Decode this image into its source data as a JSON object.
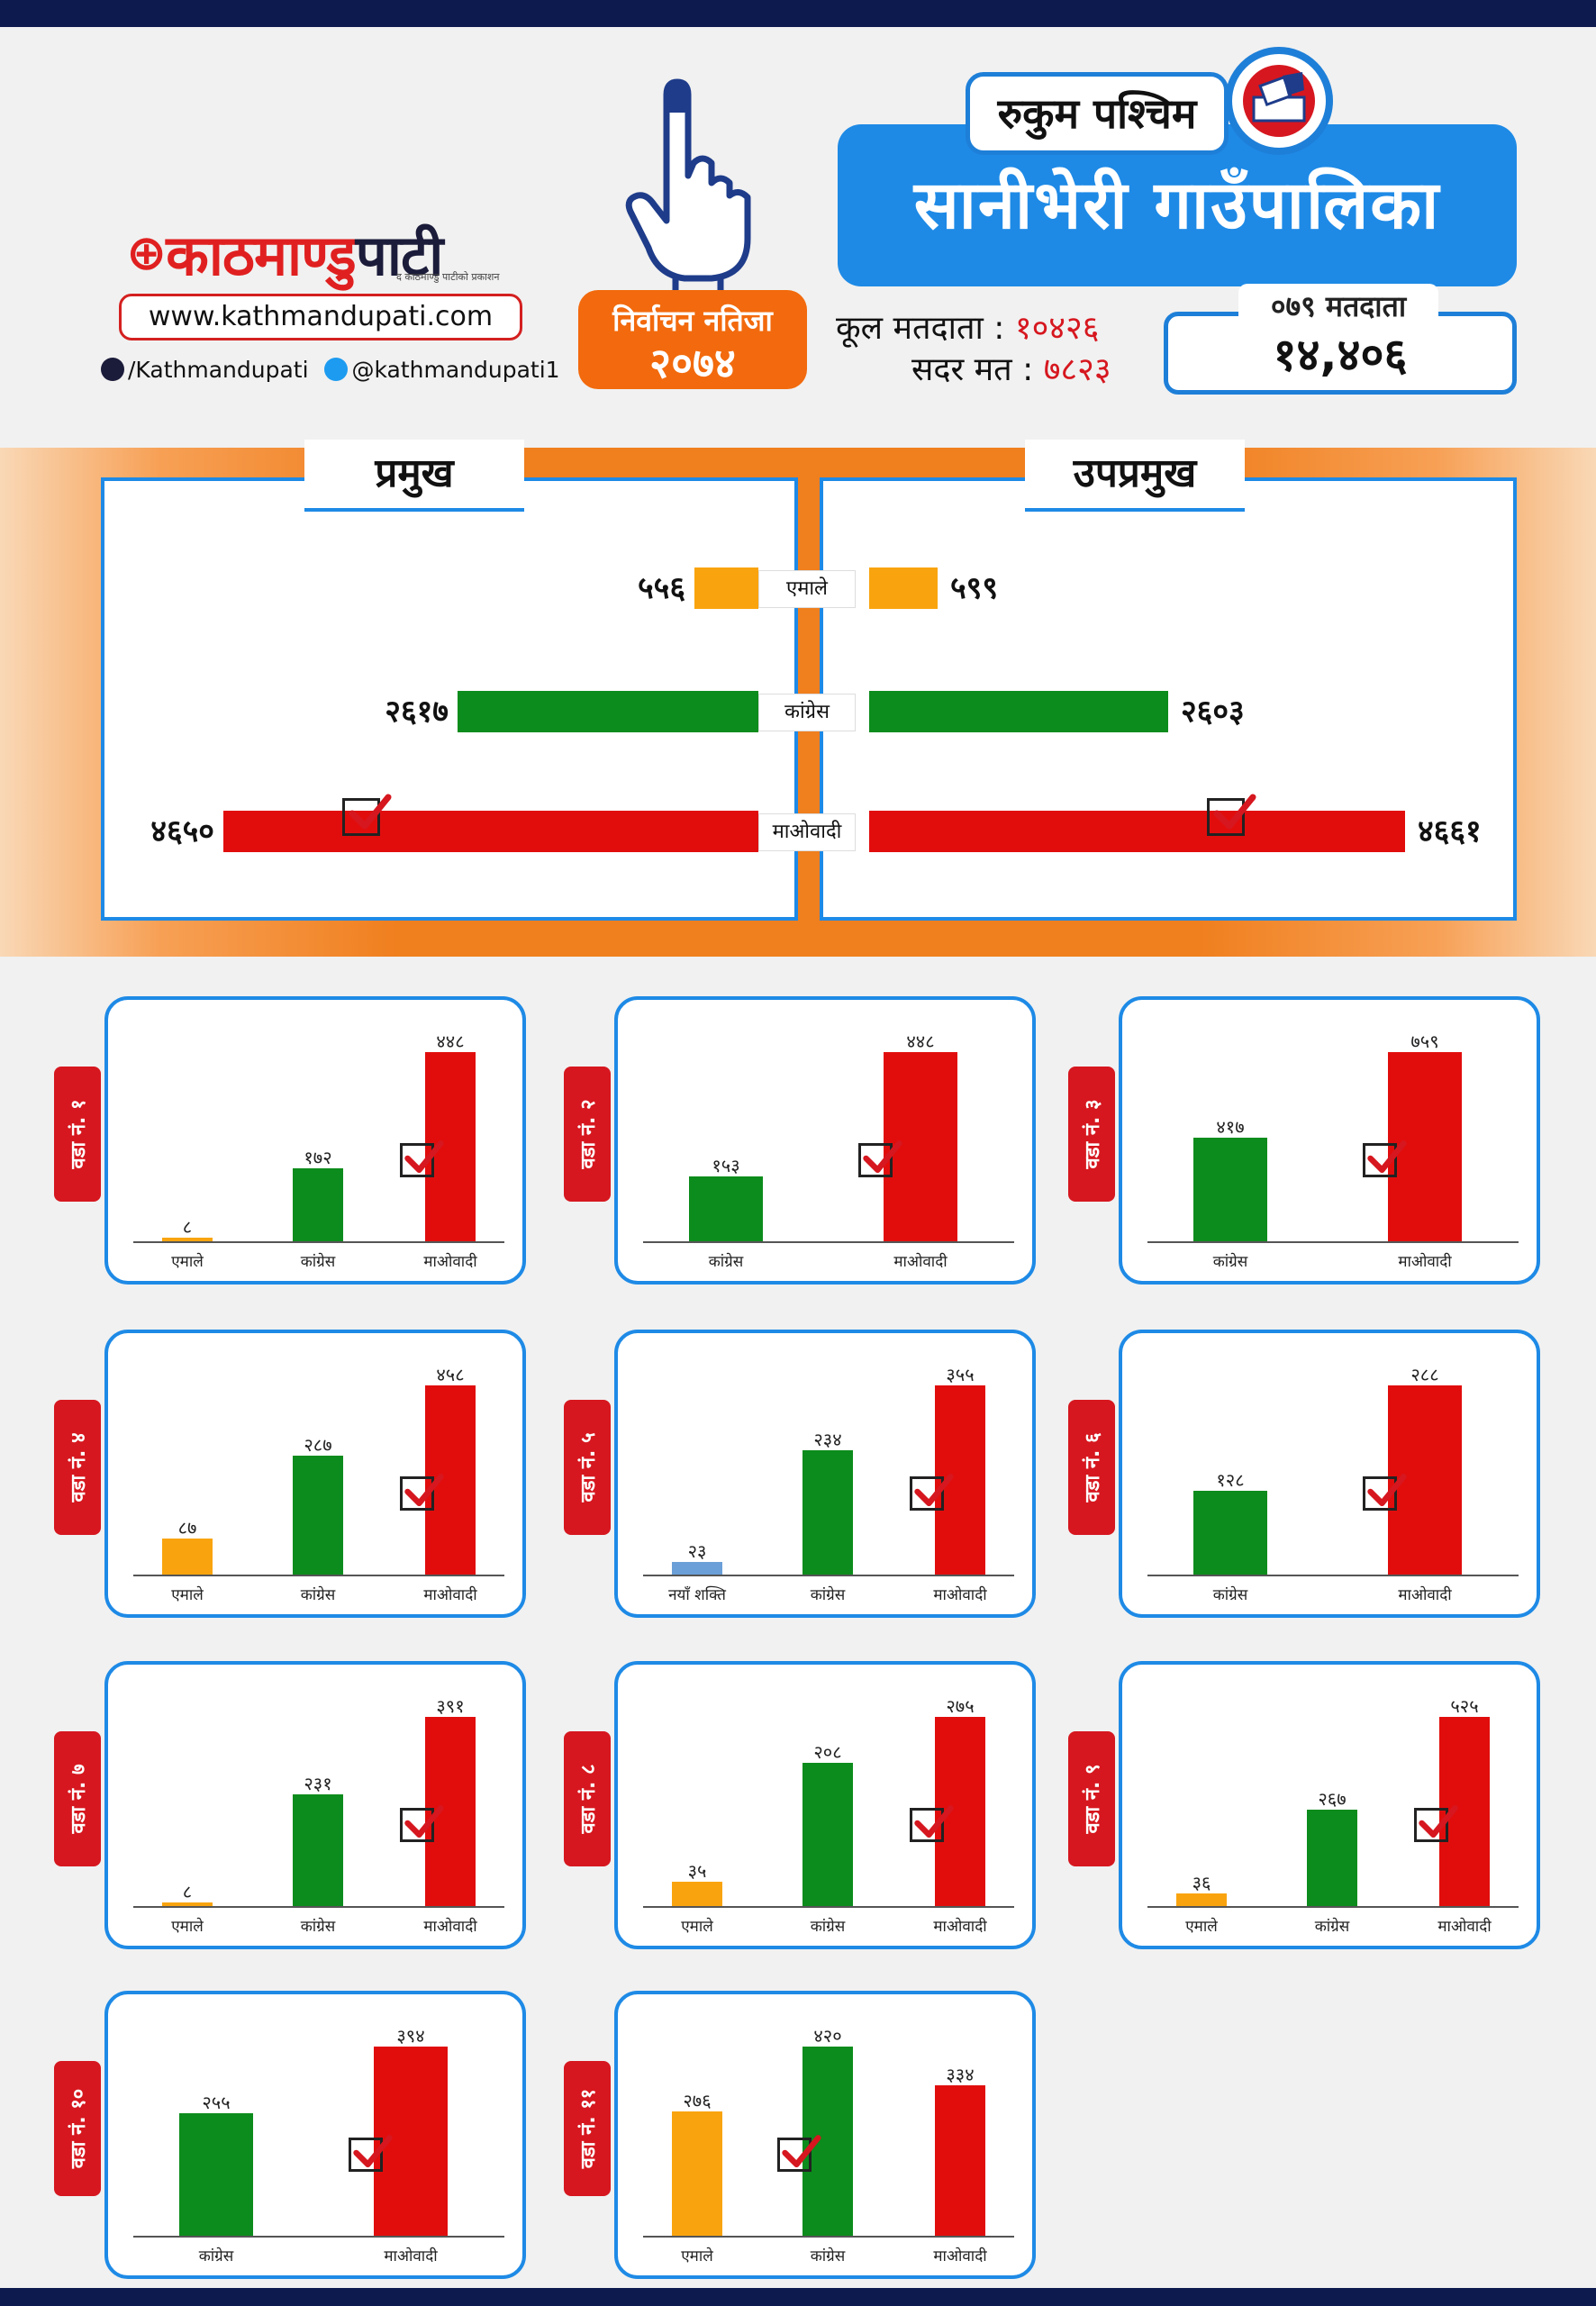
{
  "brand": {
    "logo_red": "काठमाण्डु",
    "logo_dark": "पाटी",
    "tagline": "द काठमाण्डु पाटीको प्रकाशन",
    "website": "www.kathmandupati.com",
    "facebook": "/Kathmandupati",
    "twitter": "@kathmandupati1"
  },
  "badge": {
    "line1": "निर्वाचन नतिजा",
    "line2": "२०७४"
  },
  "header": {
    "district": "रुकुम पश्चिम",
    "municipality": "सानीभेरी  गाउँपालिका"
  },
  "stats": {
    "total_voters_label": "कूल मतदाता :",
    "total_voters_value": "१०४२६",
    "valid_votes_label": "सदर मत :",
    "valid_votes_value": "७८२३",
    "voters_079_label": "०७९ मतदाता",
    "voters_079_value": "१४,४०६"
  },
  "colors": {
    "uml": "#f9a40e",
    "congress": "#0c8c1c",
    "maoist": "#e10d0d",
    "naya_shakti": "#6a9fd8",
    "accent": "#1e8ae6",
    "orange": "#f07f1e"
  },
  "chart_data": [
    {
      "type": "bar",
      "title": "प्रमुख",
      "categories": [
        "एमाले",
        "कांग्रेस",
        "माओवादी"
      ],
      "values": [
        556,
        2617,
        4650
      ],
      "value_labels": [
        "५५६",
        "२६१७",
        "४६५०"
      ],
      "winner": "माओवादी"
    },
    {
      "type": "bar",
      "title": "उपप्रमुख",
      "categories": [
        "एमाले",
        "कांग्रेस",
        "माओवादी"
      ],
      "values": [
        599,
        2603,
        4661
      ],
      "value_labels": [
        "५९९",
        "२६०३",
        "४६६१"
      ],
      "winner": "माओवादी"
    },
    {
      "type": "bar",
      "title": "वडा नं. १",
      "categories": [
        "एमाले",
        "कांग्रेस",
        "माओवादी"
      ],
      "parties": [
        "uml",
        "congress",
        "maoist"
      ],
      "values": [
        8,
        172,
        448
      ],
      "value_labels": [
        "८",
        "१७२",
        "४४८"
      ],
      "winner": "माओवादी"
    },
    {
      "type": "bar",
      "title": "वडा नं. २",
      "categories": [
        "कांग्रेस",
        "माओवादी"
      ],
      "parties": [
        "congress",
        "maoist"
      ],
      "values": [
        153,
        448
      ],
      "value_labels": [
        "१५३",
        "४४८"
      ],
      "winner": "माओवादी"
    },
    {
      "type": "bar",
      "title": "वडा नं. ३",
      "categories": [
        "कांग्रेस",
        "माओवादी"
      ],
      "parties": [
        "congress",
        "maoist"
      ],
      "values": [
        417,
        759
      ],
      "value_labels": [
        "४१७",
        "७५९"
      ],
      "winner": "माओवादी"
    },
    {
      "type": "bar",
      "title": "वडा नं. ४",
      "categories": [
        "एमाले",
        "कांग्रेस",
        "माओवादी"
      ],
      "parties": [
        "uml",
        "congress",
        "maoist"
      ],
      "values": [
        87,
        287,
        458
      ],
      "value_labels": [
        "८७",
        "२८७",
        "४५८"
      ],
      "winner": "माओवादी"
    },
    {
      "type": "bar",
      "title": "वडा नं. ५",
      "categories": [
        "नयाँ शक्ति",
        "कांग्रेस",
        "माओवादी"
      ],
      "parties": [
        "naya_shakti",
        "congress",
        "maoist"
      ],
      "values": [
        23,
        234,
        355
      ],
      "value_labels": [
        "२३",
        "२३४",
        "३५५"
      ],
      "winner": "माओवादी"
    },
    {
      "type": "bar",
      "title": "वडा नं. ६",
      "categories": [
        "कांग्रेस",
        "माओवादी"
      ],
      "parties": [
        "congress",
        "maoist"
      ],
      "values": [
        128,
        288
      ],
      "value_labels": [
        "१२८",
        "२८८"
      ],
      "winner": "माओवादी"
    },
    {
      "type": "bar",
      "title": "वडा नं. ७",
      "categories": [
        "एमाले",
        "कांग्रेस",
        "माओवादी"
      ],
      "parties": [
        "uml",
        "congress",
        "maoist"
      ],
      "values": [
        8,
        231,
        391
      ],
      "value_labels": [
        "८",
        "२३१",
        "३९१"
      ],
      "winner": "माओवादी"
    },
    {
      "type": "bar",
      "title": "वडा नं. ८",
      "categories": [
        "एमाले",
        "कांग्रेस",
        "माओवादी"
      ],
      "parties": [
        "uml",
        "congress",
        "maoist"
      ],
      "values": [
        35,
        208,
        275
      ],
      "value_labels": [
        "३५",
        "२०८",
        "२७५"
      ],
      "winner": "माओवादी"
    },
    {
      "type": "bar",
      "title": "वडा नं. ९",
      "categories": [
        "एमाले",
        "कांग्रेस",
        "माओवादी"
      ],
      "parties": [
        "uml",
        "congress",
        "maoist"
      ],
      "values": [
        36,
        267,
        525
      ],
      "value_labels": [
        "३६",
        "२६७",
        "५२५"
      ],
      "winner": "माओवादी"
    },
    {
      "type": "bar",
      "title": "वडा नं. १०",
      "categories": [
        "कांग्रेस",
        "माओवादी"
      ],
      "parties": [
        "congress",
        "maoist"
      ],
      "values": [
        255,
        394
      ],
      "value_labels": [
        "२५५",
        "३९४"
      ],
      "winner": "माओवादी"
    },
    {
      "type": "bar",
      "title": "वडा नं. ११",
      "categories": [
        "एमाले",
        "कांग्रेस",
        "माओवादी"
      ],
      "parties": [
        "uml",
        "congress",
        "maoist"
      ],
      "values": [
        276,
        420,
        334
      ],
      "value_labels": [
        "२७६",
        "४२०",
        "३३४"
      ],
      "winner": "कांग्रेस"
    }
  ]
}
